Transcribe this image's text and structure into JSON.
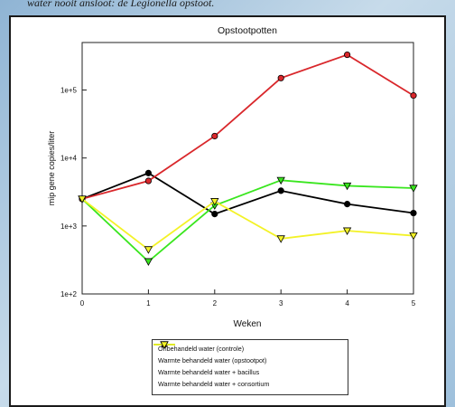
{
  "page": {
    "caption": "water nooit ansloot: de Legionella opstoot."
  },
  "chart_data": {
    "type": "line",
    "title": "Opstootpotten",
    "xlabel": "Weken",
    "ylabel": "mip gene copies/liter",
    "x": [
      0,
      1,
      2,
      3,
      4,
      5
    ],
    "x_ticks": [
      "0",
      "1",
      "2",
      "3",
      "4",
      "5"
    ],
    "y_scale": "log",
    "ylim": [
      100,
      500000
    ],
    "y_ticks": [
      {
        "value": 100,
        "label": "1e+2"
      },
      {
        "value": 1000,
        "label": "1e+3"
      },
      {
        "value": 10000,
        "label": "1e+4"
      },
      {
        "value": 100000,
        "label": "1e+5"
      }
    ],
    "grid": false,
    "legend_position": "bottom",
    "series": [
      {
        "name": "Onbehandeld water (controle)",
        "color": "#000000",
        "marker": "circle",
        "values": [
          2500,
          6000,
          1500,
          3300,
          2100,
          1550
        ]
      },
      {
        "name": "Warmte behandeld water (opstootpot)",
        "color": "#d9272b",
        "marker": "circle",
        "values": [
          2500,
          4600,
          21000,
          150000,
          330000,
          83000
        ]
      },
      {
        "name": "Warmte behandeld water + bacillus",
        "color": "#39e61e",
        "marker": "triangle-down",
        "values": [
          2500,
          300,
          2000,
          4700,
          3900,
          3600
        ]
      },
      {
        "name": "Warmte behandeld water + consortium",
        "color": "#f3f227",
        "marker": "triangle-down",
        "values": [
          2500,
          450,
          2300,
          650,
          850,
          720
        ]
      }
    ]
  }
}
